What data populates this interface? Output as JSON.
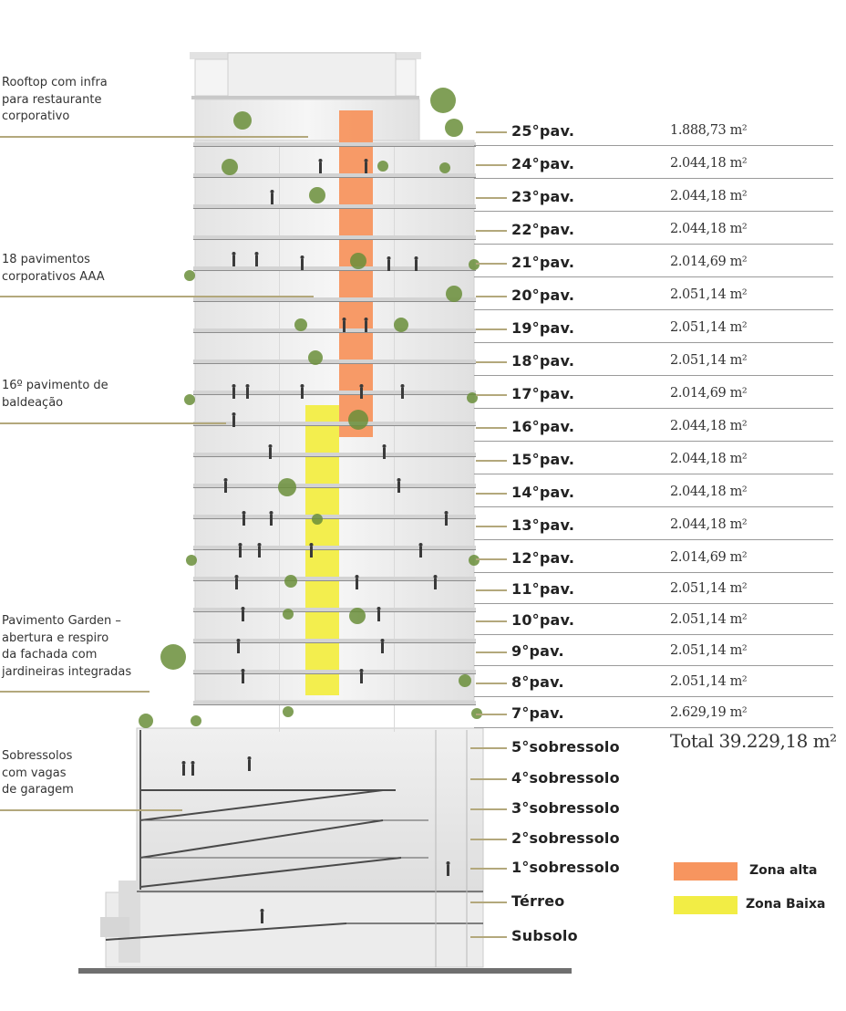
{
  "annotations": [
    {
      "id": "rooftop",
      "text": "Rooftop com infra\npara  restaurante\ncorporativo"
    },
    {
      "id": "corporativos",
      "text": "18 pavimentos\ncorporativos AAA"
    },
    {
      "id": "baldeacao",
      "text": "16º pavimento de\nbaldeação"
    },
    {
      "id": "garden",
      "text": "Pavimento Garden –\nabertura e respiro\nda fachada com\njardineiras integradas"
    },
    {
      "id": "sobressolos",
      "text": "Sobressolos\ncom vagas\nde garagem"
    }
  ],
  "floors": [
    {
      "name": "25°pav.",
      "area": "1.888,73 m²"
    },
    {
      "name": "24°pav.",
      "area": "2.044,18 m²"
    },
    {
      "name": "23°pav.",
      "area": "2.044,18 m²"
    },
    {
      "name": "22°pav.",
      "area": "2.044,18 m²"
    },
    {
      "name": "21°pav.",
      "area": "2.014,69 m²"
    },
    {
      "name": "20°pav.",
      "area": "2.051,14 m²"
    },
    {
      "name": "19°pav.",
      "area": "2.051,14 m²"
    },
    {
      "name": "18°pav.",
      "area": "2.051,14 m²"
    },
    {
      "name": "17°pav.",
      "area": "2.014,69 m²"
    },
    {
      "name": "16°pav.",
      "area": "2.044,18 m²"
    },
    {
      "name": "15°pav.",
      "area": "2.044,18 m²"
    },
    {
      "name": "14°pav.",
      "area": "2.044,18 m²"
    },
    {
      "name": "13°pav.",
      "area": "2.044,18 m²"
    },
    {
      "name": "12°pav.",
      "area": "2.014,69 m²"
    },
    {
      "name": "11°pav.",
      "area": "2.051,14 m²"
    },
    {
      "name": "10°pav.",
      "area": "2.051,14 m²"
    },
    {
      "name": "9°pav.",
      "area": "2.051,14 m²"
    },
    {
      "name": "8°pav.",
      "area": "2.051,14 m²"
    },
    {
      "name": "7°pav.",
      "area": "2.629,19 m²"
    }
  ],
  "lower_levels": [
    "5°sobressolo",
    "4°sobressolo",
    "3°sobressolo",
    "2°sobressolo",
    "1°sobressolo",
    "Térreo",
    "Subsolo"
  ],
  "total": "Total 39.229,18 m²",
  "legend": [
    {
      "label": "Zona alta",
      "color": "#f7955f"
    },
    {
      "label": "Zona Baixa",
      "color": "#f2ed45"
    }
  ],
  "colors": {
    "leader": "#b3a87c",
    "zona_alta": "#f7955f",
    "zona_baixa": "#f2ed45",
    "building_glass": "#ececec",
    "plants": "#6a8e3a"
  }
}
